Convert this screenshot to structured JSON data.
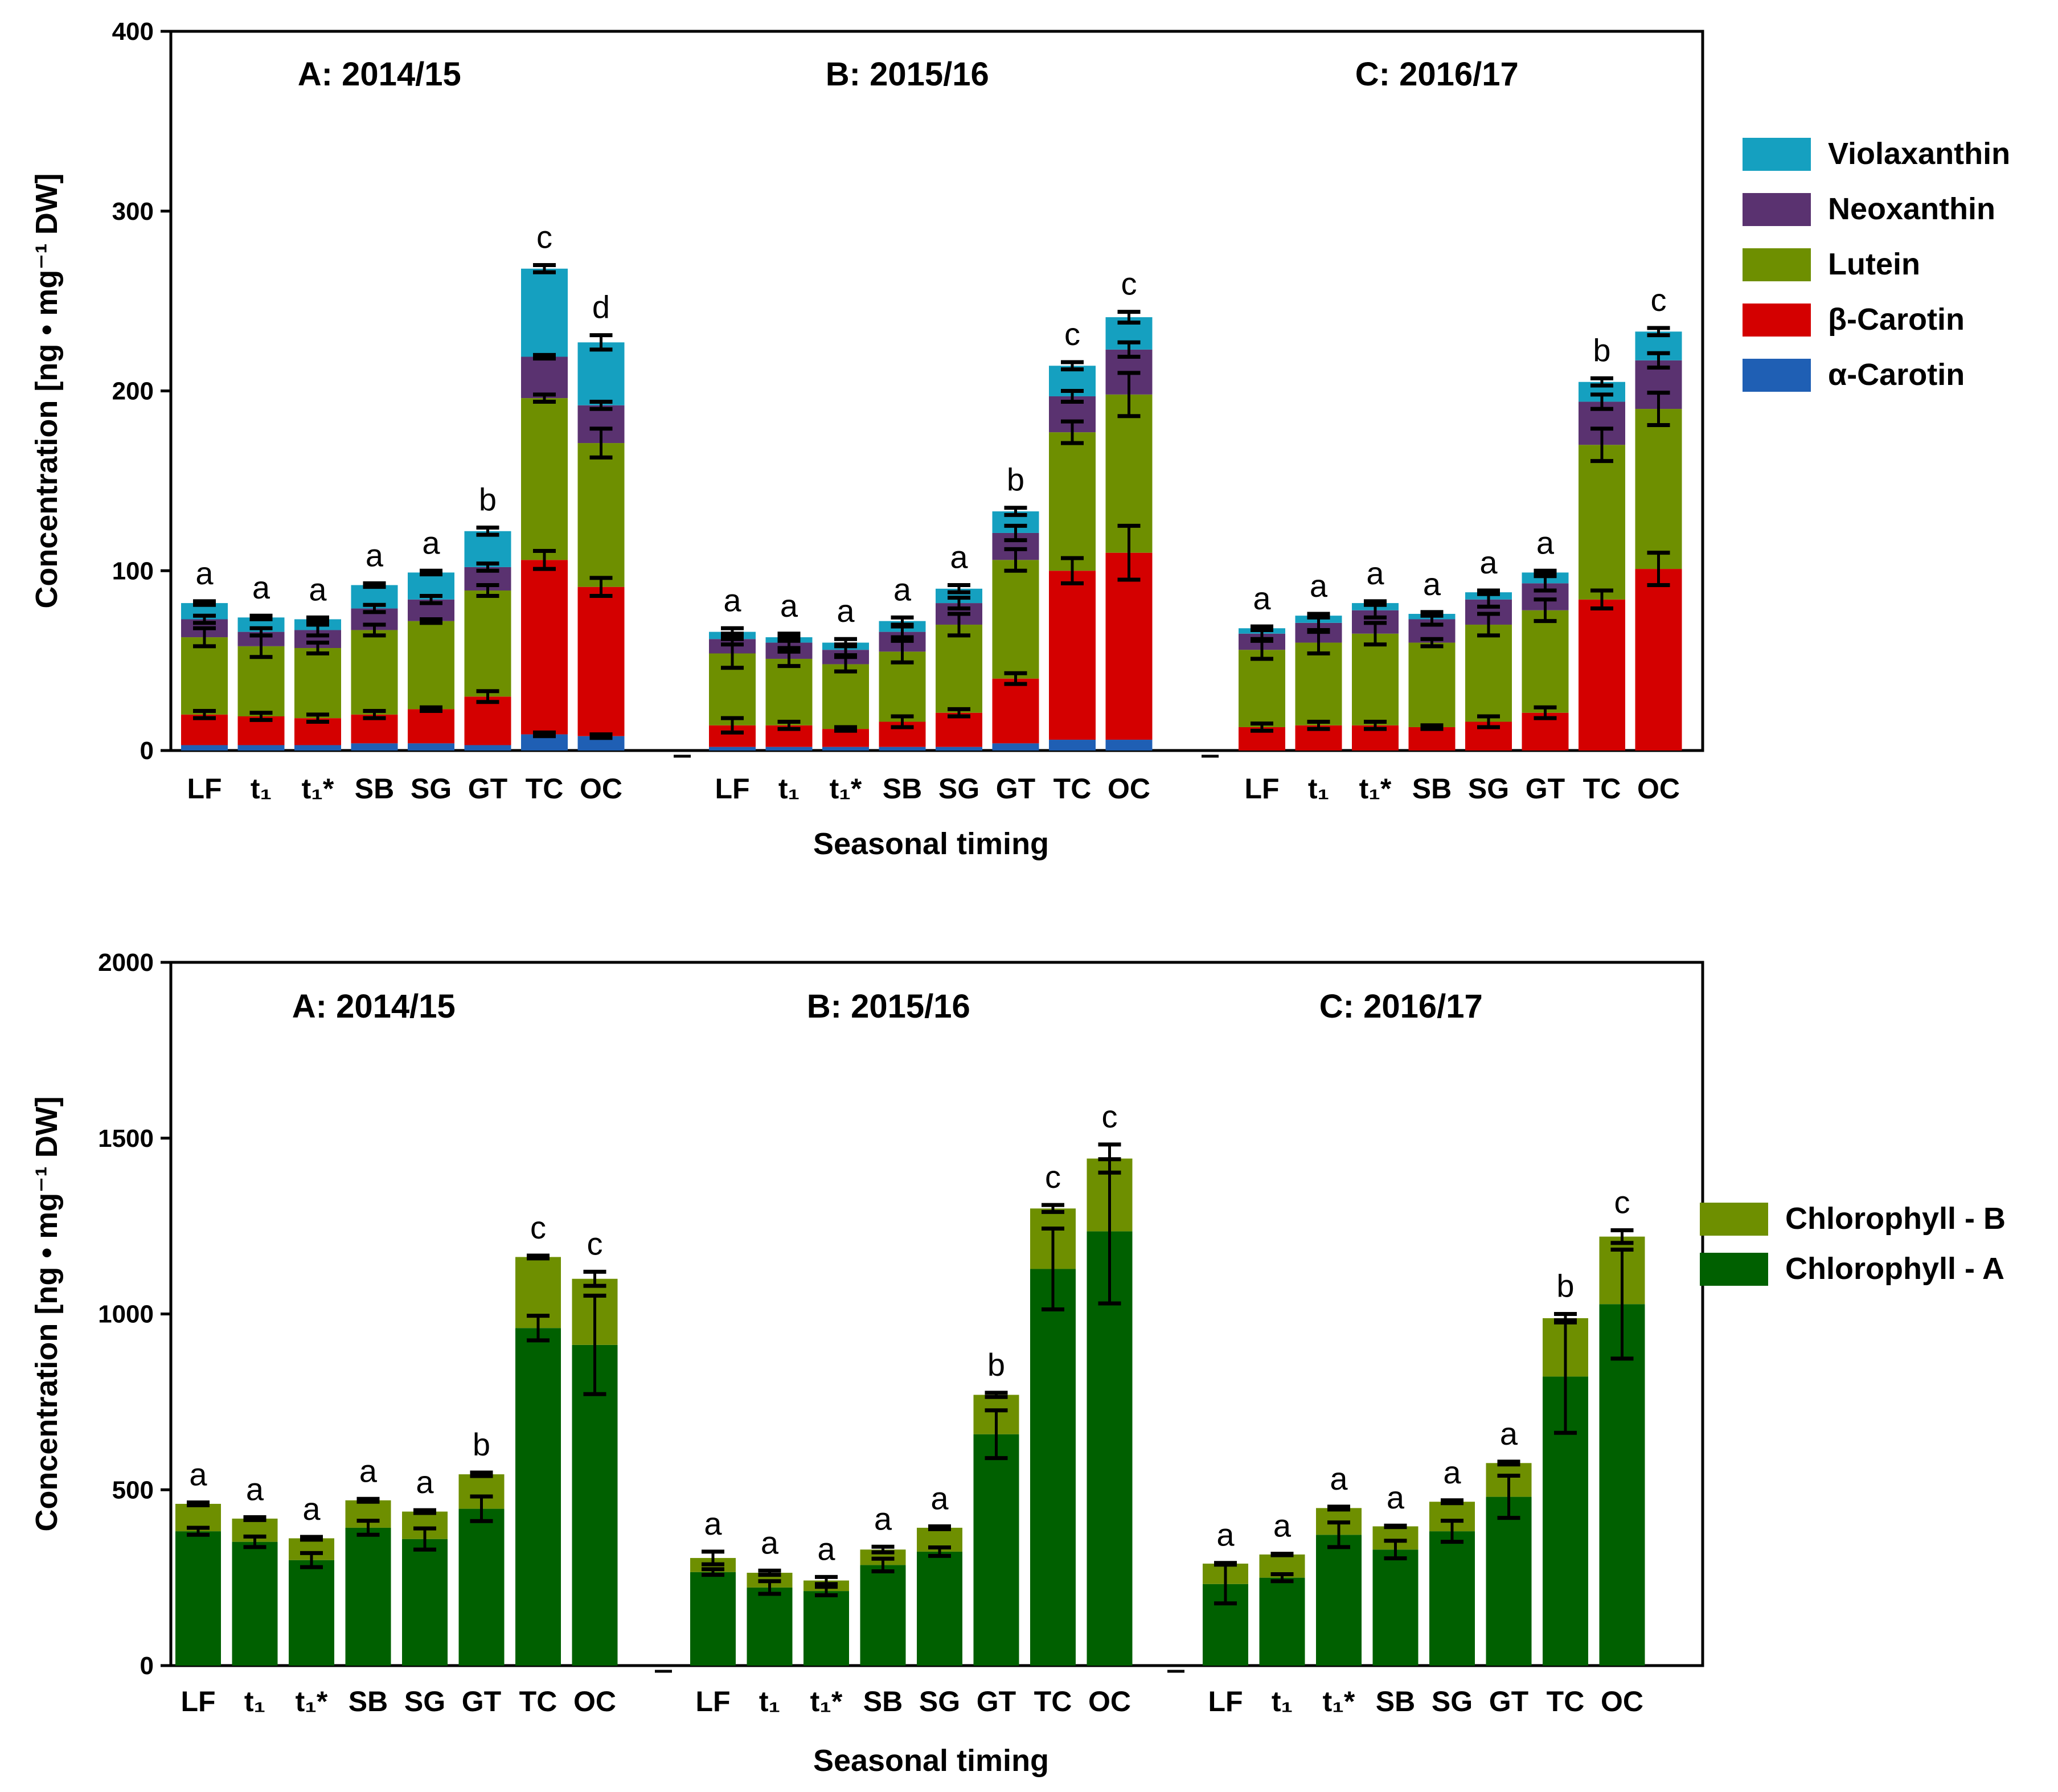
{
  "charts": [
    {
      "id": "carotenoids",
      "chart_data": {
        "type": "bar",
        "stacked": true,
        "ylabel": "Concentration [ng • mg⁻¹ DW]",
        "xlabel": "Seasonal timing",
        "ylim": [
          0,
          400
        ],
        "yticks": [
          0,
          100,
          200,
          300,
          400
        ],
        "grid": false,
        "legend_position": "right",
        "series": [
          {
            "name": "α-Carotin",
            "color": "#1f5fb4"
          },
          {
            "name": "β-Carotin",
            "color": "#d40000"
          },
          {
            "name": "Lutein",
            "color": "#6e8f00"
          },
          {
            "name": "Neoxanthin",
            "color": "#5a3270"
          },
          {
            "name": "Violaxanthin",
            "color": "#15a0c0"
          }
        ],
        "groups": [
          {
            "title": "A: 2014/15",
            "categories": [
              "LF",
              "t₁",
              "t₁*",
              "SB",
              "SG",
              "GT",
              "TC",
              "OC"
            ],
            "values": {
              "α-Carotin": [
                3,
                3,
                3,
                4,
                4,
                3,
                9,
                8
              ],
              "β-Carotin": [
                17,
                16,
                15,
                16,
                19,
                27,
                97,
                83
              ],
              "Lutein": [
                43,
                39,
                39,
                47,
                49,
                59,
                90,
                80
              ],
              "Neoxanthin": [
                10,
                8,
                10,
                12,
                12,
                13,
                23,
                21
              ],
              "Violaxanthin": [
                9,
                8,
                6,
                13,
                15,
                20,
                49,
                35
              ]
            },
            "errors": {
              "α-Carotin": [
                0,
                0,
                0,
                0,
                0,
                0,
                1,
                1
              ],
              "β-Carotin": [
                2,
                2,
                2,
                2,
                1,
                3,
                5,
                5
              ],
              "Lutein": [
                5,
                6,
                3,
                3,
                1,
                3,
                2,
                8
              ],
              "Neoxanthin": [
                2,
                2,
                3,
                2,
                2,
                2,
                1,
                2
              ],
              "Violaxanthin": [
                1,
                1,
                1,
                1,
                1,
                2,
                2,
                4
              ]
            },
            "letters": [
              "a",
              "a",
              "a",
              "a",
              "a",
              "b",
              "c",
              "d"
            ]
          },
          {
            "title": "B: 2015/16",
            "categories": [
              "LF",
              "t₁",
              "t₁*",
              "SB",
              "SG",
              "GT",
              "TC",
              "OC"
            ],
            "values": {
              "α-Carotin": [
                2,
                2,
                2,
                2,
                2,
                4,
                6,
                6
              ],
              "β-Carotin": [
                12,
                12,
                10,
                14,
                19,
                36,
                94,
                104
              ],
              "Lutein": [
                40,
                37,
                36,
                39,
                49,
                66,
                77,
                88
              ],
              "Neoxanthin": [
                8,
                9,
                8,
                11,
                12,
                15,
                20,
                25
              ],
              "Violaxanthin": [
                4,
                3,
                4,
                6,
                8,
                12,
                17,
                18
              ]
            },
            "errors": {
              "α-Carotin": [
                0,
                0,
                0,
                0,
                0,
                0,
                0,
                0
              ],
              "β-Carotin": [
                4,
                2,
                1,
                3,
                2,
                3,
                7,
                15
              ],
              "Lutein": [
                8,
                4,
                4,
                6,
                6,
                6,
                6,
                12
              ],
              "Neoxanthin": [
                3,
                3,
                3,
                3,
                3,
                4,
                3,
                4
              ],
              "Violaxanthin": [
                2,
                2,
                2,
                2,
                2,
                2,
                2,
                3
              ]
            },
            "letters": [
              "a",
              "a",
              "a",
              "a",
              "a",
              "b",
              "c",
              "c"
            ]
          },
          {
            "title": "C: 2016/17",
            "categories": [
              "LF",
              "t₁",
              "t₁*",
              "SB",
              "SG",
              "GT",
              "TC",
              "OC"
            ],
            "values": {
              "α-Carotin": [
                0,
                0,
                0,
                0,
                0,
                0,
                0,
                0
              ],
              "β-Carotin": [
                13,
                14,
                14,
                13,
                16,
                21,
                84,
                101
              ],
              "Lutein": [
                43,
                46,
                51,
                47,
                54,
                57,
                86,
                89
              ],
              "Neoxanthin": [
                9,
                11,
                13,
                13,
                14,
                15,
                24,
                27
              ],
              "Violaxanthin": [
                3,
                4,
                4,
                3,
                4,
                6,
                11,
                16
              ]
            },
            "errors": {
              "α-Carotin": [
                0,
                0,
                0,
                0,
                0,
                0,
                0,
                0
              ],
              "β-Carotin": [
                2,
                2,
                2,
                1,
                3,
                3,
                5,
                9
              ],
              "Lutein": [
                5,
                6,
                6,
                2,
                6,
                6,
                9,
                9
              ],
              "Neoxanthin": [
                3,
                4,
                4,
                3,
                4,
                4,
                4,
                4
              ],
              "Violaxanthin": [
                1,
                1,
                1,
                1,
                1,
                1,
                2,
                2
              ]
            },
            "letters": [
              "a",
              "a",
              "a",
              "a",
              "a",
              "a",
              "b",
              "c"
            ]
          }
        ]
      }
    },
    {
      "id": "chlorophylls",
      "chart_data": {
        "type": "bar",
        "stacked": true,
        "ylabel": "Concentration [ng • mg⁻¹ DW]",
        "xlabel": "Seasonal timing",
        "ylim": [
          0,
          2000
        ],
        "yticks": [
          0,
          500,
          1000,
          1500,
          2000
        ],
        "grid": false,
        "legend_position": "right",
        "series": [
          {
            "name": "Chlorophyll - A",
            "color": "#006000"
          },
          {
            "name": "Chlorophyll - B",
            "color": "#6e8f00"
          }
        ],
        "groups": [
          {
            "title": "A: 2014/15",
            "categories": [
              "LF",
              "t₁",
              "t₁*",
              "SB",
              "SG",
              "GT",
              "TC",
              "OC"
            ],
            "values": {
              "Chlorophyll - A": [
                382,
                352,
                300,
                392,
                360,
                446,
                960,
                912
              ],
              "Chlorophyll - B": [
                78,
                66,
                62,
                78,
                78,
                98,
                202,
                188
              ]
            },
            "errors": {
              "Chlorophyll - A": [
                10,
                15,
                20,
                20,
                30,
                35,
                35,
                140
              ],
              "Chlorophyll - B": [
                4,
                4,
                4,
                4,
                4,
                5,
                4,
                20
              ]
            },
            "letters": [
              "a",
              "a",
              "a",
              "a",
              "a",
              "b",
              "c",
              "c"
            ]
          },
          {
            "title": "B: 2015/16",
            "categories": [
              "LF",
              "t₁",
              "t₁*",
              "SB",
              "SG",
              "GT",
              "TC",
              "OC"
            ],
            "values": {
              "Chlorophyll - A": [
                266,
                222,
                212,
                286,
                324,
                658,
                1128,
                1235
              ],
              "Chlorophyll - B": [
                40,
                42,
                30,
                44,
                68,
                112,
                172,
                207
              ]
            },
            "errors": {
              "Chlorophyll - A": [
                8,
                18,
                12,
                18,
                12,
                68,
                115,
                205
              ],
              "Chlorophyll - B": [
                18,
                6,
                10,
                8,
                4,
                6,
                10,
                40
              ]
            },
            "letters": [
              "a",
              "a",
              "a",
              "a",
              "a",
              "b",
              "c",
              "c"
            ]
          },
          {
            "title": "C: 2016/17",
            "categories": [
              "LF",
              "t₁",
              "t₁*",
              "SB",
              "SG",
              "GT",
              "TC",
              "OC"
            ],
            "values": {
              "Chlorophyll - A": [
                232,
                250,
                372,
                330,
                382,
                480,
                822,
                1028
              ],
              "Chlorophyll - B": [
                58,
                66,
                76,
                66,
                84,
                96,
                166,
                192
              ]
            },
            "errors": {
              "Chlorophyll - A": [
                55,
                10,
                35,
                25,
                30,
                60,
                160,
                155
              ],
              "Chlorophyll - B": [
                2,
                2,
                4,
                2,
                4,
                4,
                12,
                18
              ]
            },
            "letters": [
              "a",
              "a",
              "a",
              "a",
              "a",
              "a",
              "b",
              "c"
            ]
          }
        ]
      }
    }
  ]
}
